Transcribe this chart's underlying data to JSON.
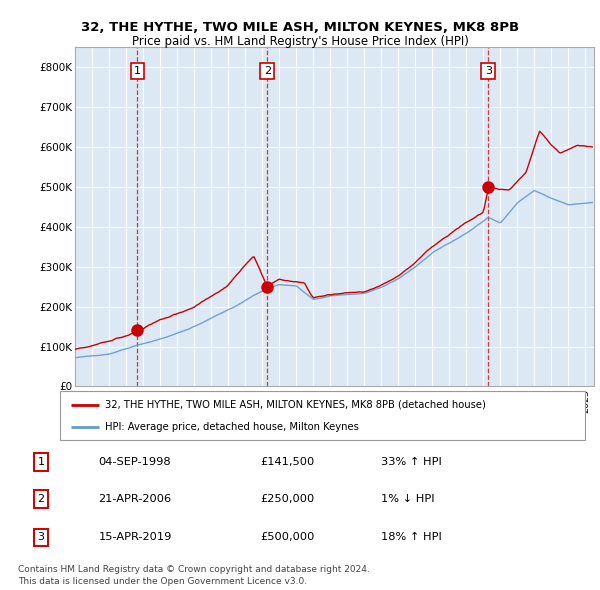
{
  "title_line1": "32, THE HYTHE, TWO MILE ASH, MILTON KEYNES, MK8 8PB",
  "title_line2": "Price paid vs. HM Land Registry's House Price Index (HPI)",
  "legend_label1": "32, THE HYTHE, TWO MILE ASH, MILTON KEYNES, MK8 8PB (detached house)",
  "legend_label2": "HPI: Average price, detached house, Milton Keynes",
  "footer1": "Contains HM Land Registry data © Crown copyright and database right 2024.",
  "footer2": "This data is licensed under the Open Government Licence v3.0.",
  "transactions": [
    {
      "num": 1,
      "date": "04-SEP-1998",
      "price": "£141,500",
      "change": "33% ↑ HPI",
      "year": 1998.67,
      "value": 141500
    },
    {
      "num": 2,
      "date": "21-APR-2006",
      "price": "£250,000",
      "change": "1% ↓ HPI",
      "year": 2006.3,
      "value": 250000
    },
    {
      "num": 3,
      "date": "15-APR-2019",
      "price": "£500,000",
      "change": "18% ↑ HPI",
      "year": 2019.29,
      "value": 500000
    }
  ],
  "ylim": [
    0,
    850000
  ],
  "yticks": [
    0,
    100000,
    200000,
    300000,
    400000,
    500000,
    600000,
    700000,
    800000
  ],
  "ytick_labels": [
    "£0",
    "£100K",
    "£200K",
    "£300K",
    "£400K",
    "£500K",
    "£600K",
    "£700K",
    "£800K"
  ],
  "red_color": "#cc0000",
  "blue_color": "#6699cc",
  "vline_color": "#cc0000",
  "grid_color": "#cccccc",
  "chart_bg": "#dce9f5",
  "background": "#ffffff",
  "xlim_start": 1995,
  "xlim_end": 2025.5
}
